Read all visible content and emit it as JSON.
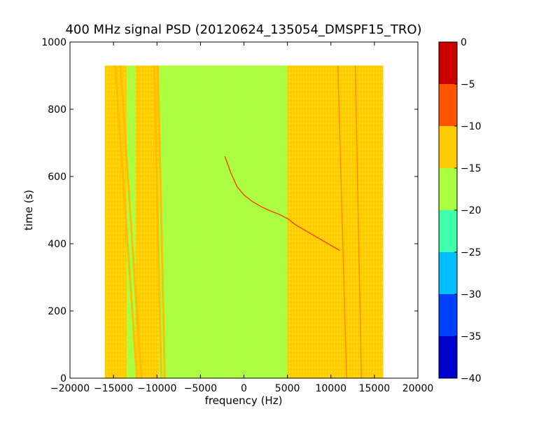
{
  "chart_data": {
    "type": "heatmap",
    "title": "400 MHz signal PSD (20120624_135054_DMSPF15_TRO)",
    "xlabel": "frequency (Hz)",
    "ylabel": "time (s)",
    "xlim": [
      -20000,
      20000
    ],
    "ylim": [
      0,
      1000
    ],
    "xticks": [
      -20000,
      -15000,
      -10000,
      -5000,
      0,
      5000,
      10000,
      15000,
      20000
    ],
    "xtick_labels": [
      "−20000",
      "−15000",
      "−10000",
      "−5000",
      "0",
      "5000",
      "10000",
      "15000",
      "20000"
    ],
    "yticks": [
      0,
      200,
      400,
      600,
      800,
      1000
    ],
    "ytick_labels": [
      "0",
      "200",
      "400",
      "600",
      "800",
      "1000"
    ],
    "data_extent": {
      "x": [
        -16000,
        16000
      ],
      "y": [
        0,
        930
      ]
    },
    "colorbar": {
      "levels": [
        -40,
        -35,
        -30,
        -25,
        -20,
        -15,
        -10,
        -5,
        0
      ],
      "tick_labels": [
        "−40",
        "−35",
        "−30",
        "−25",
        "−20",
        "−15",
        "−10",
        "−5",
        "0"
      ],
      "colors": [
        "#0000cc",
        "#0040ff",
        "#00bfff",
        "#40ffaa",
        "#aaff40",
        "#ffcc00",
        "#ff5500",
        "#cc0000"
      ]
    },
    "regions": [
      {
        "x": [
          -16000,
          16000
        ],
        "y": [
          0,
          930
        ],
        "level": "-15 to -10"
      },
      {
        "x": [
          -9800,
          5000
        ],
        "y": [
          0,
          930
        ],
        "level": "-20 to -15"
      },
      {
        "x": [
          -13500,
          -12500
        ],
        "y": [
          0,
          930
        ],
        "level": "-20 to -15"
      },
      {
        "x": [
          5000,
          16000
        ],
        "y": [
          0,
          930
        ],
        "level": "-15 to -10"
      }
    ],
    "bands": [
      {
        "x_bottom": -12300,
        "x_top": -14800,
        "level": "-15 to -10"
      },
      {
        "x_bottom": -11800,
        "x_top": -14200,
        "level": "-15 to -10"
      },
      {
        "x_bottom": -9500,
        "x_top": -10300,
        "level": "-15 to -10"
      },
      {
        "x_bottom": -9100,
        "x_top": -9900,
        "level": "-15 to -10"
      },
      {
        "x_bottom": 11800,
        "x_top": 10800,
        "level": "-10 to -5"
      },
      {
        "x_bottom": 13500,
        "x_top": 12800,
        "level": "-10 to -5"
      }
    ],
    "trace": {
      "level": "-5 to 0",
      "points": [
        [
          -2200,
          660
        ],
        [
          -1500,
          610
        ],
        [
          -800,
          570
        ],
        [
          0,
          545
        ],
        [
          1000,
          525
        ],
        [
          2000,
          510
        ],
        [
          3000,
          498
        ],
        [
          4000,
          488
        ],
        [
          5000,
          475
        ],
        [
          6000,
          455
        ],
        [
          7000,
          440
        ],
        [
          8000,
          425
        ],
        [
          9000,
          410
        ],
        [
          10000,
          395
        ],
        [
          11000,
          380
        ]
      ]
    },
    "grid": false,
    "legend": "colorbar-right"
  }
}
